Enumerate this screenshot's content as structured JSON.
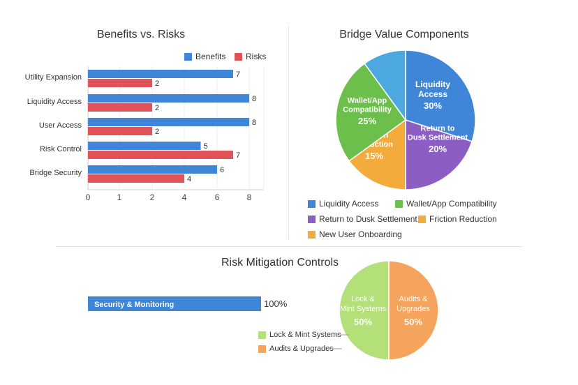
{
  "colors": {
    "benefits": "#3f86d8",
    "risks": "#e05459",
    "liquidity": "#3f86d8",
    "wallet": "#6cbf4a",
    "settlement": "#8c5ec4",
    "friction": "#f3ab3c",
    "onboarding": "#4ea8e0",
    "lockmint": "#b4e07a",
    "audits": "#f4a45c"
  },
  "chart_data": [
    {
      "type": "bar",
      "orientation": "horizontal",
      "title": "Benefits vs. Risks",
      "categories": [
        "Utility Expansion",
        "Liquidity Access",
        "User Access",
        "Risk Control",
        "Bridge Security"
      ],
      "series": [
        {
          "name": "Benefits",
          "values": [
            7,
            8,
            8,
            5,
            6
          ]
        },
        {
          "name": "Risks",
          "values": [
            2,
            2,
            2,
            7,
            4
          ]
        }
      ],
      "xticks": [
        "0",
        "1",
        "2",
        "4",
        "6",
        "8"
      ],
      "xlim": [
        0,
        9
      ],
      "legend_position": "top-right"
    },
    {
      "type": "pie",
      "title": "Bridge Value Components",
      "slices": [
        {
          "label": "Liquidity Access",
          "display": [
            "Liquidity",
            "Access"
          ],
          "value": 30,
          "pct_label": "30%"
        },
        {
          "label": "Return to Dusk Settlement",
          "display": [
            "Return to",
            "Dusk Settlement"
          ],
          "value": 20,
          "pct_label": "20%"
        },
        {
          "label": "Friction Reduction",
          "display": [
            "Friction",
            "Reduction"
          ],
          "value": 15,
          "pct_label": "15%"
        },
        {
          "label": "Wallet/App Compatibility",
          "display": [
            "Wallet/App",
            "Compatibility"
          ],
          "value": 25,
          "pct_label": "25%"
        },
        {
          "label": "New User Onboarding",
          "display": [],
          "value": 10,
          "pct_label": ""
        }
      ],
      "legend": [
        "Liquidity Access",
        "Wallet/App Compatibility",
        "Return to Dusk Settlement",
        "Friction Reduction",
        "New User Onboarding"
      ],
      "legend_position": "bottom"
    },
    {
      "type": "bar",
      "orientation": "horizontal",
      "title": "Risk Mitigation Controls",
      "categories": [
        "Security & Monitoring"
      ],
      "values": [
        100
      ],
      "value_label": "100%"
    },
    {
      "type": "pie",
      "slices": [
        {
          "label": "Lock & Mint Systems",
          "display": [
            "Lock &",
            "Mint Systems"
          ],
          "value": 50,
          "pct_label": "50%"
        },
        {
          "label": "Audits & Upgrades",
          "display": [
            "Audits &",
            "Upgrades"
          ],
          "value": 50,
          "pct_label": "50%"
        }
      ],
      "legend": [
        "Lock & Mint Systems",
        "Audits & Upgrades"
      ],
      "legend_position": "left"
    }
  ]
}
